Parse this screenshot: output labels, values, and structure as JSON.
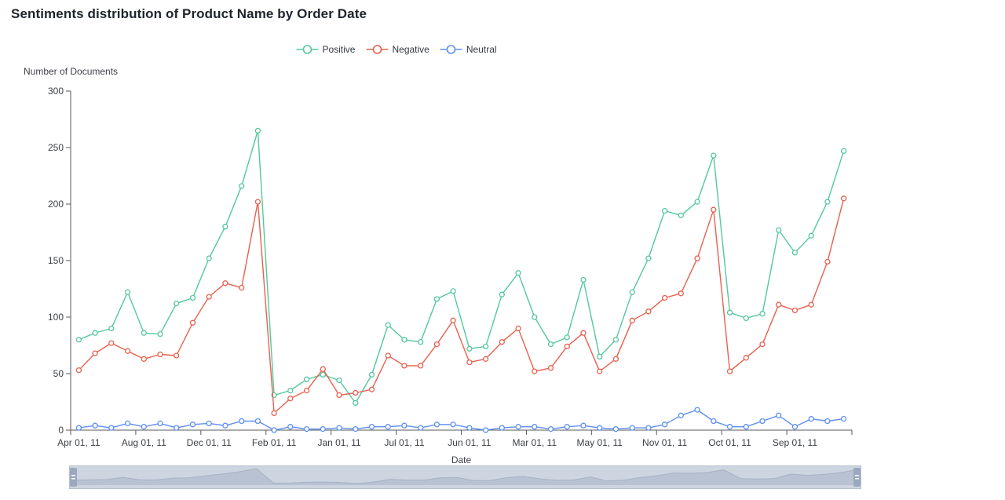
{
  "title": "Sentiments distribution of Product Name by Order Date",
  "legend": {
    "items": [
      {
        "label": "Positive",
        "color": "#55c89c"
      },
      {
        "label": "Negative",
        "color": "#e7604f"
      },
      {
        "label": "Neutral",
        "color": "#5e8ff2"
      }
    ]
  },
  "chart_data": {
    "type": "line",
    "title": "Sentiments distribution of Product Name by Order Date",
    "xlabel": "Date",
    "ylabel": "Number of Documents",
    "ylim": [
      0,
      300
    ],
    "y_ticks": [
      0,
      50,
      100,
      150,
      200,
      250,
      300
    ],
    "x_tick_labels": [
      "Apr 01, 11",
      "Aug 01, 11",
      "Dec 01, 11",
      "Feb 01, 11",
      "Jan 01, 11",
      "Jul 01, 11",
      "Jun 01, 11",
      "Mar 01, 11",
      "May 01, 11",
      "Nov 01, 11",
      "Oct 01, 11",
      "Sep 01, 11"
    ],
    "x_points_per_tick": 4,
    "n_points": 48,
    "grid": false,
    "legend_position": "top-center",
    "marker": "hollow-circle",
    "series": [
      {
        "name": "Positive",
        "color": "#55c89c",
        "values": [
          80,
          86,
          90,
          122,
          86,
          85,
          112,
          117,
          152,
          180,
          216,
          265,
          31,
          35,
          45,
          49,
          44,
          24,
          49,
          93,
          80,
          78,
          116,
          123,
          72,
          74,
          120,
          139,
          100,
          76,
          82,
          133,
          65,
          80,
          122,
          152,
          194,
          190,
          202,
          243,
          104,
          99,
          103,
          177,
          157,
          172,
          202,
          247
        ]
      },
      {
        "name": "Negative",
        "color": "#e7604f",
        "values": [
          53,
          68,
          77,
          70,
          63,
          67,
          66,
          95,
          118,
          130,
          126,
          202,
          15,
          28,
          35,
          54,
          31,
          33,
          36,
          66,
          57,
          57,
          76,
          97,
          60,
          63,
          78,
          90,
          52,
          55,
          74,
          86,
          52,
          63,
          97,
          105,
          117,
          121,
          152,
          195,
          52,
          64,
          76,
          111,
          106,
          111,
          149,
          205
        ]
      },
      {
        "name": "Neutral",
        "color": "#5e8ff2",
        "values": [
          2,
          4,
          2,
          6,
          3,
          6,
          2,
          5,
          6,
          4,
          8,
          8,
          0,
          3,
          1,
          1,
          2,
          1,
          3,
          3,
          4,
          2,
          5,
          5,
          2,
          0,
          2,
          3,
          3,
          1,
          3,
          4,
          2,
          1,
          2,
          2,
          5,
          13,
          18,
          8,
          3,
          3,
          8,
          13,
          3,
          10,
          8,
          10
        ]
      }
    ]
  },
  "slider": {
    "zoom_start": "0%",
    "zoom_end": "100%",
    "colors": {
      "track": "#cdd5e1",
      "shadow_fill": "#b8c2d2",
      "shadow_line": "#a6b2c4",
      "handle": "#9aa9bf",
      "border": "#b7c0cd"
    }
  },
  "axis_style": {
    "line_color": "#55585e",
    "label_color": "#3d4147"
  }
}
